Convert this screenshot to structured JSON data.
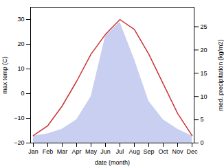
{
  "chart_data": {
    "type": "line",
    "categories": [
      "Jan",
      "Feb",
      "Mar",
      "Apr",
      "May",
      "Jun",
      "Jul",
      "Aug",
      "Sep",
      "Oct",
      "Nov",
      "Dec"
    ],
    "xlabel": "date (month)",
    "ylabel": "max temp (C)",
    "y2label": "med. precipitation (kg/m2)",
    "ylim": [
      -20,
      35
    ],
    "yticks": [
      -20,
      -10,
      0,
      10,
      20,
      30
    ],
    "y2lim": [
      0,
      29.2
    ],
    "y2ticks": [
      0,
      5,
      10,
      15,
      20,
      25
    ],
    "series": [
      {
        "type": "area",
        "axis": "y2",
        "color": "#c8cff0",
        "values": [
          1.5,
          2.0,
          3.0,
          5.0,
          10.0,
          23.0,
          26.0,
          18.0,
          9.0,
          5.0,
          3.0,
          1.5
        ]
      },
      {
        "type": "line",
        "color": "#cc3333",
        "values": [
          -17,
          -13,
          -5,
          5,
          16,
          24,
          30,
          26,
          16,
          4,
          -8,
          -17
        ]
      }
    ]
  }
}
